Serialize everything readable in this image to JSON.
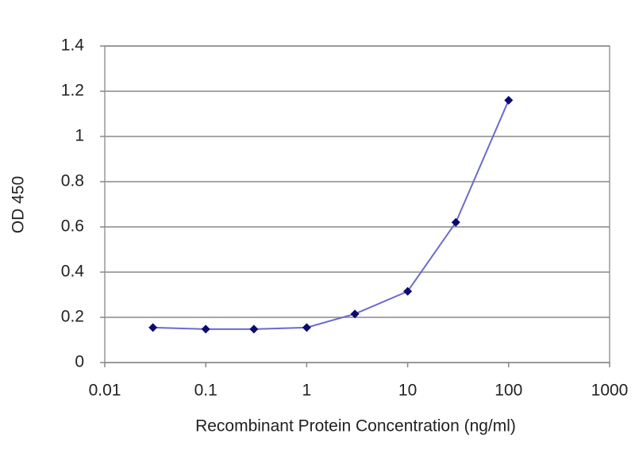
{
  "chart_data": {
    "type": "line",
    "xlabel": "Recombinant Protein Concentration (ng/ml)",
    "ylabel": "OD 450",
    "xscale": "log",
    "x": [
      0.03,
      0.1,
      0.3,
      1,
      3,
      10,
      30,
      100
    ],
    "series": [
      {
        "name": "OD 450",
        "color": "#6a6ad0",
        "marker_color": "#0a0a70",
        "values": [
          0.155,
          0.148,
          0.148,
          0.155,
          0.215,
          0.315,
          0.62,
          1.16
        ]
      }
    ],
    "xlim": [
      0.01,
      1000
    ],
    "xticks": [
      0.01,
      0.1,
      1,
      10,
      100,
      1000
    ],
    "ylim": [
      0,
      1.4
    ],
    "yticks": [
      0,
      0.2,
      0.4,
      0.6,
      0.8,
      1,
      1.2,
      1.4
    ],
    "grid": true
  }
}
